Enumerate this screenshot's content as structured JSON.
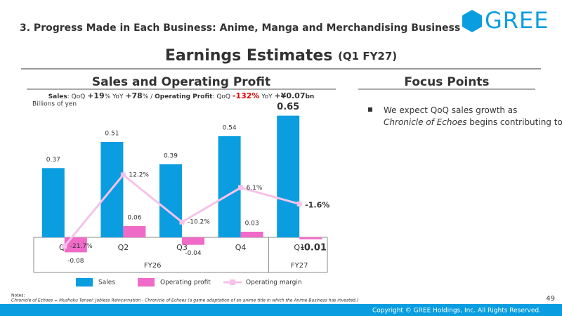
{
  "header": {
    "section": "3. Progress Made in Each Business: Anime, Manga and Merchandising Business",
    "logo": "GREE",
    "title": "Earnings Estimates",
    "title_suffix": "(Q1 FY27)"
  },
  "left_heading": "Sales and Operating Profit",
  "right_heading": "Focus Points",
  "focus_points": [
    [
      "We expect QoQ sales growth as ",
      "Chronicle of Echoes",
      " begins contributing to earnings"
    ]
  ],
  "chart_data": {
    "type": "bar",
    "summary": [
      "Sales",
      ": QoQ ",
      "+19",
      "% YoY ",
      "+78",
      "% / ",
      "Operating Profit",
      ": QoQ ",
      "-132%",
      " YoY ",
      "+¥0.07",
      "bn"
    ],
    "unit_label": "Billions of yen",
    "categories": [
      "Q1",
      "Q2",
      "Q3",
      "Q4",
      "Q1"
    ],
    "category_groups": [
      "FY26",
      "FY26",
      "FY26",
      "FY26",
      "FY27"
    ],
    "ylim": [
      -0.15,
      0.75
    ],
    "y2lim": [
      -30.8,
      49.2
    ],
    "series": [
      {
        "name": "Sales",
        "color": "#0a9ee0",
        "values": [
          0.37,
          0.51,
          0.39,
          0.54,
          0.65
        ]
      },
      {
        "name": "Operating profit",
        "color": "#f06ac8",
        "values": [
          -0.08,
          0.06,
          -0.04,
          0.03,
          -0.01
        ]
      },
      {
        "name": "Operating margin",
        "color": "#f7c2e9",
        "axis": "y2",
        "type": "line",
        "values": [
          -21.7,
          12.2,
          -10.2,
          6.1,
          -1.6
        ],
        "value_labels": [
          "-21.7%",
          "12.2%",
          "-10.2%",
          "6.1%",
          "-1.6%"
        ]
      }
    ]
  },
  "notes": {
    "title": "Notes:",
    "items": [
      "Chronicle of Echoes = Mushoku Tensei: Jobless Reincarnation - Chronicle of Echoes (a game adaptation of an anime title in which the Anime Business has invested.)"
    ]
  },
  "page_number": "49",
  "copyright": "Copyright © GREE Holdings, Inc. All Rights Reserved."
}
